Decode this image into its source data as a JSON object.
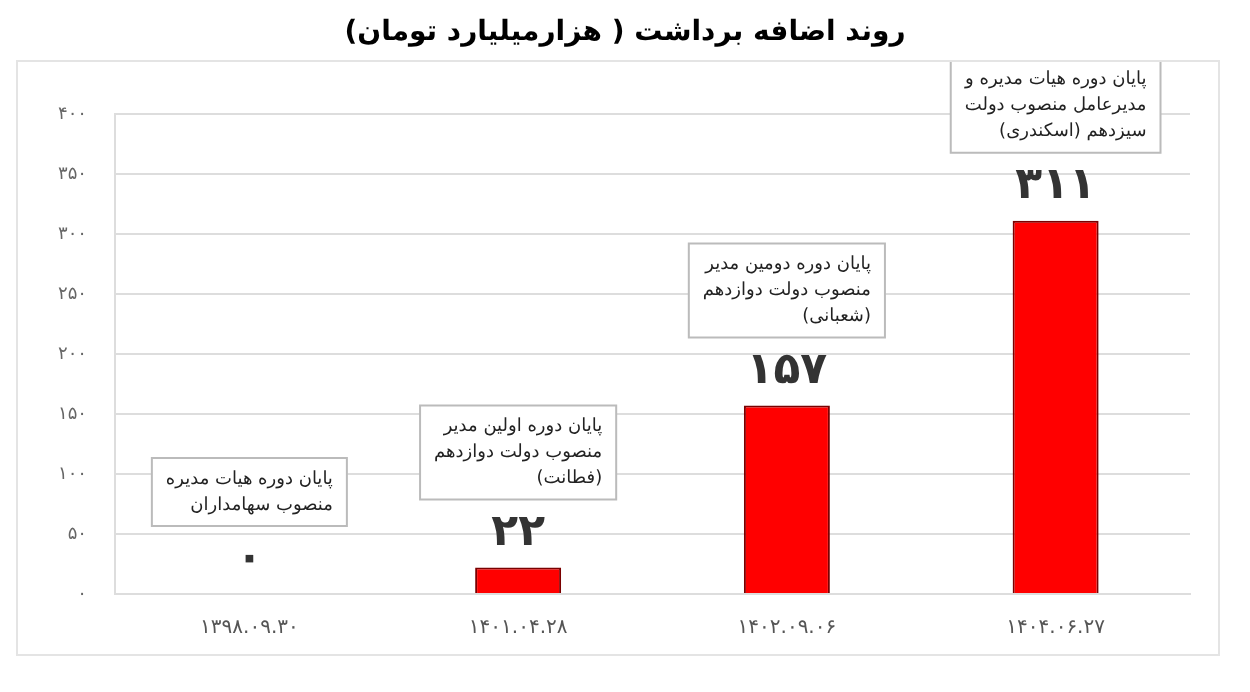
{
  "chart_data": {
    "type": "bar",
    "title": "روند اضافه برداشت ( هزارمیلیارد تومان)",
    "categories": [
      "۱۳۹۸.۰۹.۳۰",
      "۱۴۰۱.۰۴.۲۸",
      "۱۴۰۲.۰۹.۰۶",
      "۱۴۰۴.۰۶.۲۷"
    ],
    "values": [
      0,
      22,
      157,
      311
    ],
    "color": "#ff0000",
    "value_labels": [
      "۰",
      "۲۲",
      "۱۵۷",
      "۳۱۱"
    ],
    "ylim": [
      0,
      400
    ],
    "yticks": [
      {
        "value": 0,
        "label": "۰"
      },
      {
        "value": 50,
        "label": "۵۰"
      },
      {
        "value": 100,
        "label": "۱۰۰"
      },
      {
        "value": 150,
        "label": "۱۵۰"
      },
      {
        "value": 200,
        "label": "۲۰۰"
      },
      {
        "value": 250,
        "label": "۲۵۰"
      },
      {
        "value": 300,
        "label": "۳۰۰"
      },
      {
        "value": 350,
        "label": "۳۵۰"
      },
      {
        "value": 400,
        "label": "۴۰۰"
      }
    ],
    "grid": "y",
    "legend": false,
    "annotations": [
      "پایان دوره هیات مدیره\nمنصوب سهامداران",
      "پایان دوره اولین مدیر\nمنصوب دولت دوازدهم\n(فطانت)",
      "پایان دوره دومین مدیر\nمنصوب دولت دوازدهم\n(شعبانی)",
      "پایان دوره هیات مدیره و\nمدیرعامل منصوب دولت\nسیزدهم (اسکندری)"
    ]
  }
}
